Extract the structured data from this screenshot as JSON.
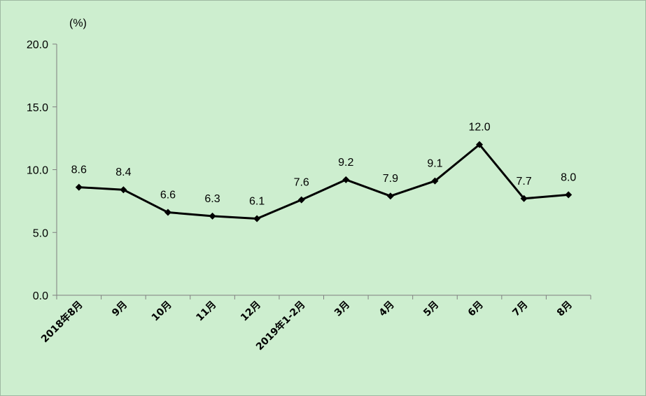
{
  "chart_data": {
    "type": "line",
    "title": "",
    "xlabel": "",
    "ylabel": "(%)",
    "categories": [
      "2018年8月",
      "9月",
      "10月",
      "11月",
      "12月",
      "2019年1-2月",
      "3月",
      "4月",
      "5月",
      "6月",
      "7月",
      "8月"
    ],
    "series": [
      {
        "values": [
          8.6,
          8.4,
          6.6,
          6.3,
          6.1,
          7.6,
          9.2,
          7.9,
          9.1,
          12.0,
          7.7,
          8.0
        ]
      }
    ],
    "data_labels": [
      "8.6",
      "8.4",
      "6.6",
      "6.3",
      "6.1",
      "7.6",
      "9.2",
      "7.9",
      "9.1",
      "12.0",
      "7.7",
      "8.0"
    ],
    "ylim": [
      0,
      20
    ],
    "yticks": [
      "0.0",
      "5.0",
      "10.0",
      "15.0",
      "20.0"
    ],
    "grid": false,
    "legend": "none",
    "line_color": "#000000",
    "marker": "diamond",
    "background_color": "#cdeecf"
  }
}
